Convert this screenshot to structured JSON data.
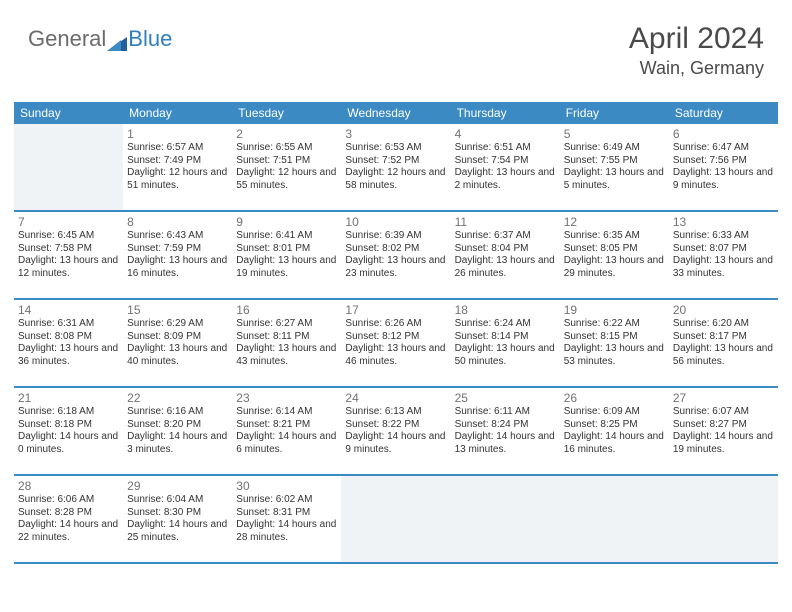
{
  "logo": {
    "part1": "General",
    "part2": "Blue"
  },
  "header": {
    "month_year": "April 2024",
    "location": "Wain, Germany"
  },
  "colors": {
    "header_blue": "#3b8ac4",
    "logo_blue": "#2f7fbf",
    "text_gray": "#4a4a4a",
    "cell_shade": "#eff3f6",
    "rule_blue": "#3b8ac4"
  },
  "day_names": [
    "Sunday",
    "Monday",
    "Tuesday",
    "Wednesday",
    "Thursday",
    "Friday",
    "Saturday"
  ],
  "weeks": [
    [
      null,
      {
        "n": "1",
        "sr": "6:57 AM",
        "ss": "7:49 PM",
        "dl": "12 hours and 51 minutes."
      },
      {
        "n": "2",
        "sr": "6:55 AM",
        "ss": "7:51 PM",
        "dl": "12 hours and 55 minutes."
      },
      {
        "n": "3",
        "sr": "6:53 AM",
        "ss": "7:52 PM",
        "dl": "12 hours and 58 minutes."
      },
      {
        "n": "4",
        "sr": "6:51 AM",
        "ss": "7:54 PM",
        "dl": "13 hours and 2 minutes."
      },
      {
        "n": "5",
        "sr": "6:49 AM",
        "ss": "7:55 PM",
        "dl": "13 hours and 5 minutes."
      },
      {
        "n": "6",
        "sr": "6:47 AM",
        "ss": "7:56 PM",
        "dl": "13 hours and 9 minutes."
      }
    ],
    [
      {
        "n": "7",
        "sr": "6:45 AM",
        "ss": "7:58 PM",
        "dl": "13 hours and 12 minutes."
      },
      {
        "n": "8",
        "sr": "6:43 AM",
        "ss": "7:59 PM",
        "dl": "13 hours and 16 minutes."
      },
      {
        "n": "9",
        "sr": "6:41 AM",
        "ss": "8:01 PM",
        "dl": "13 hours and 19 minutes."
      },
      {
        "n": "10",
        "sr": "6:39 AM",
        "ss": "8:02 PM",
        "dl": "13 hours and 23 minutes."
      },
      {
        "n": "11",
        "sr": "6:37 AM",
        "ss": "8:04 PM",
        "dl": "13 hours and 26 minutes."
      },
      {
        "n": "12",
        "sr": "6:35 AM",
        "ss": "8:05 PM",
        "dl": "13 hours and 29 minutes."
      },
      {
        "n": "13",
        "sr": "6:33 AM",
        "ss": "8:07 PM",
        "dl": "13 hours and 33 minutes."
      }
    ],
    [
      {
        "n": "14",
        "sr": "6:31 AM",
        "ss": "8:08 PM",
        "dl": "13 hours and 36 minutes."
      },
      {
        "n": "15",
        "sr": "6:29 AM",
        "ss": "8:09 PM",
        "dl": "13 hours and 40 minutes."
      },
      {
        "n": "16",
        "sr": "6:27 AM",
        "ss": "8:11 PM",
        "dl": "13 hours and 43 minutes."
      },
      {
        "n": "17",
        "sr": "6:26 AM",
        "ss": "8:12 PM",
        "dl": "13 hours and 46 minutes."
      },
      {
        "n": "18",
        "sr": "6:24 AM",
        "ss": "8:14 PM",
        "dl": "13 hours and 50 minutes."
      },
      {
        "n": "19",
        "sr": "6:22 AM",
        "ss": "8:15 PM",
        "dl": "13 hours and 53 minutes."
      },
      {
        "n": "20",
        "sr": "6:20 AM",
        "ss": "8:17 PM",
        "dl": "13 hours and 56 minutes."
      }
    ],
    [
      {
        "n": "21",
        "sr": "6:18 AM",
        "ss": "8:18 PM",
        "dl": "14 hours and 0 minutes."
      },
      {
        "n": "22",
        "sr": "6:16 AM",
        "ss": "8:20 PM",
        "dl": "14 hours and 3 minutes."
      },
      {
        "n": "23",
        "sr": "6:14 AM",
        "ss": "8:21 PM",
        "dl": "14 hours and 6 minutes."
      },
      {
        "n": "24",
        "sr": "6:13 AM",
        "ss": "8:22 PM",
        "dl": "14 hours and 9 minutes."
      },
      {
        "n": "25",
        "sr": "6:11 AM",
        "ss": "8:24 PM",
        "dl": "14 hours and 13 minutes."
      },
      {
        "n": "26",
        "sr": "6:09 AM",
        "ss": "8:25 PM",
        "dl": "14 hours and 16 minutes."
      },
      {
        "n": "27",
        "sr": "6:07 AM",
        "ss": "8:27 PM",
        "dl": "14 hours and 19 minutes."
      }
    ],
    [
      {
        "n": "28",
        "sr": "6:06 AM",
        "ss": "8:28 PM",
        "dl": "14 hours and 22 minutes."
      },
      {
        "n": "29",
        "sr": "6:04 AM",
        "ss": "8:30 PM",
        "dl": "14 hours and 25 minutes."
      },
      {
        "n": "30",
        "sr": "6:02 AM",
        "ss": "8:31 PM",
        "dl": "14 hours and 28 minutes."
      },
      null,
      null,
      null,
      null
    ]
  ],
  "labels": {
    "sunrise": "Sunrise:",
    "sunset": "Sunset:",
    "daylight": "Daylight:"
  }
}
